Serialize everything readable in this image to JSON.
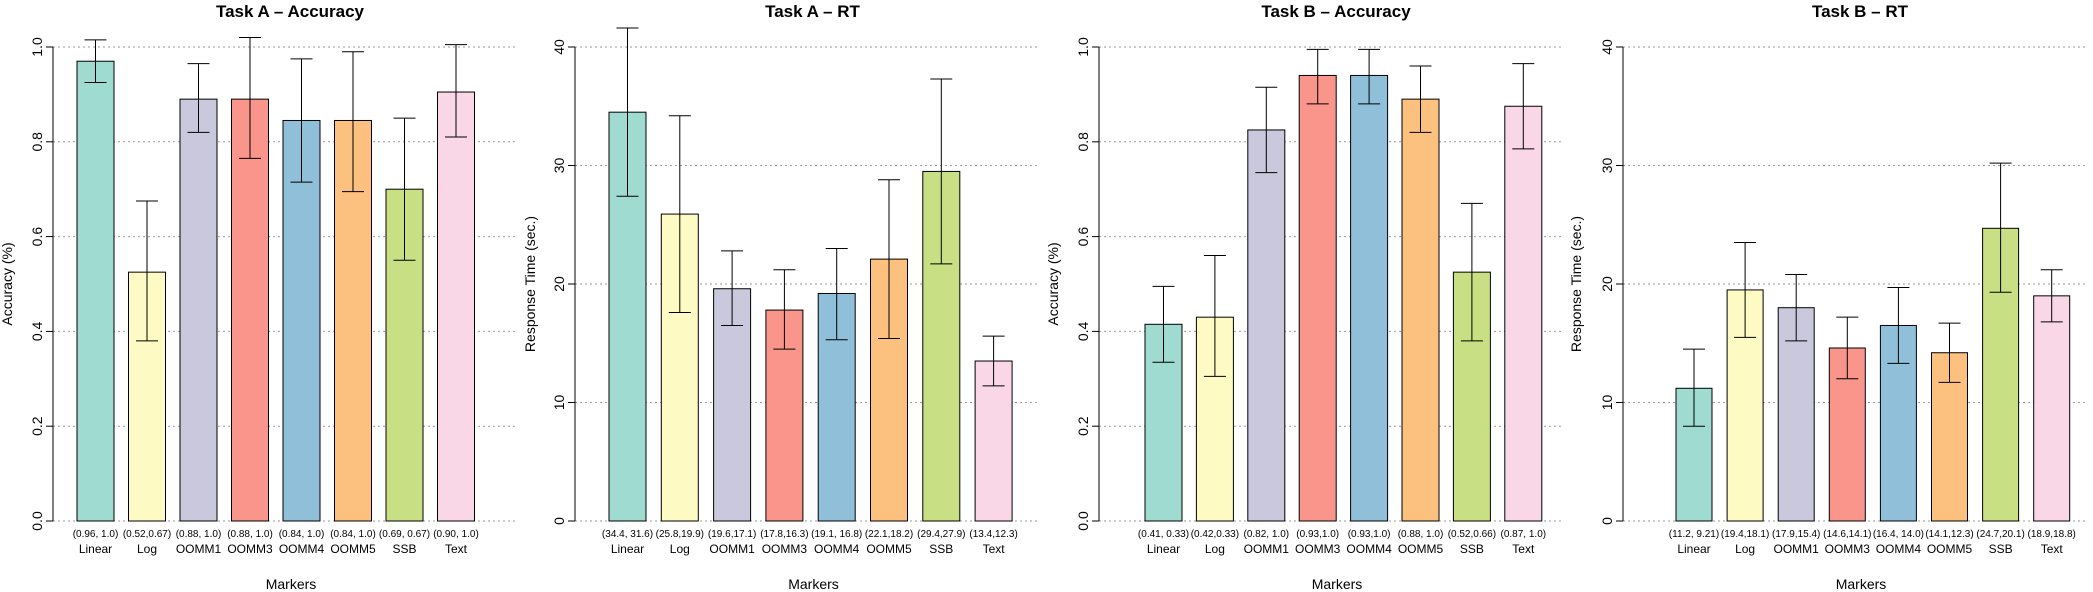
{
  "colors": [
    "#9fdbd1",
    "#fdfbc3",
    "#c9c8dd",
    "#f9958b",
    "#90bfd9",
    "#fdc17f",
    "#c9df83",
    "#f9d7e7"
  ],
  "chart_data": [
    {
      "type": "bar",
      "title": "Task A – Accuracy",
      "xlabel": "Markers",
      "ylabel": "Accuracy (%)",
      "ylim": [
        0,
        1.0
      ],
      "yticks": [
        0.0,
        0.2,
        0.4,
        0.6,
        0.8,
        1.0
      ],
      "ytick_labels": [
        "0.0",
        "0.2",
        "0.4",
        "0.6",
        "0.8",
        "1.0"
      ],
      "grid": "horizontal dotted",
      "categories": [
        "Linear",
        "Log",
        "OOMM1",
        "OOMM3",
        "OOMM4",
        "OOMM5",
        "SSB",
        "Text"
      ],
      "ci_labels": [
        "(0.96, 1.0)",
        "(0.52,0.67)",
        "(0.88, 1.0)",
        "(0.88, 1.0)",
        "(0.84, 1.0)",
        "(0.84, 1.0)",
        "(0.69, 0.67)",
        "(0.90, 1.0)"
      ],
      "values": [
        0.97,
        0.525,
        0.89,
        0.89,
        0.845,
        0.845,
        0.7,
        0.905
      ],
      "err_low": [
        0.925,
        0.38,
        0.82,
        0.765,
        0.715,
        0.695,
        0.55,
        0.81
      ],
      "err_high": [
        1.015,
        0.675,
        0.965,
        1.02,
        0.975,
        0.99,
        0.85,
        1.005
      ]
    },
    {
      "type": "bar",
      "title": "Task A – RT",
      "xlabel": "Markers",
      "ylabel": "Response Time (sec.)",
      "ylim": [
        0,
        40
      ],
      "yticks": [
        0,
        10,
        20,
        30,
        40
      ],
      "ytick_labels": [
        "0",
        "10",
        "20",
        "30",
        "40"
      ],
      "grid": "horizontal dotted",
      "categories": [
        "Linear",
        "Log",
        "OOMM1",
        "OOMM3",
        "OOMM4",
        "OOMM5",
        "SSB",
        "Text"
      ],
      "ci_labels": [
        "(34.4, 31.6)",
        "(25.8,19.9)",
        "(19.6,17.1)",
        "(17.8,16.3)",
        "(19.1, 16.8)",
        "(22.1,18.2)",
        "(29.4,27.9)",
        "(13.4,12.3)"
      ],
      "values": [
        34.5,
        25.9,
        19.6,
        17.8,
        19.2,
        22.1,
        29.5,
        13.5
      ],
      "err_low": [
        27.4,
        17.6,
        16.5,
        14.5,
        15.3,
        15.4,
        21.7,
        11.4
      ],
      "err_high": [
        41.6,
        34.2,
        22.8,
        21.2,
        23.0,
        28.8,
        37.3,
        15.6
      ]
    },
    {
      "type": "bar",
      "title": "Task B – Accuracy",
      "xlabel": "Markers",
      "ylabel": "Accuracy (%)",
      "ylim": [
        0,
        1.0
      ],
      "yticks": [
        0.0,
        0.2,
        0.4,
        0.6,
        0.8,
        1.0
      ],
      "ytick_labels": [
        "0.0",
        "0.2",
        "0.4",
        "0.6",
        "0.8",
        "1.0"
      ],
      "grid": "horizontal dotted",
      "categories": [
        "Linear",
        "Log",
        "OOMM1",
        "OOMM3",
        "OOMM4",
        "OOMM5",
        "SSB",
        "Text"
      ],
      "ci_labels": [
        "(0.41, 0.33)",
        "(0.42,0.33)",
        "(0.82, 1.0)",
        "(0.93,1.0)",
        "(0.93,1.0)",
        "(0.88, 1.0)",
        "(0.52,0.66)",
        "(0.87, 1.0)"
      ],
      "values": [
        0.415,
        0.43,
        0.825,
        0.94,
        0.94,
        0.89,
        0.525,
        0.875
      ],
      "err_low": [
        0.335,
        0.305,
        0.735,
        0.88,
        0.88,
        0.82,
        0.38,
        0.785
      ],
      "err_high": [
        0.495,
        0.56,
        0.915,
        0.995,
        0.995,
        0.96,
        0.67,
        0.965
      ]
    },
    {
      "type": "bar",
      "title": "Task B – RT",
      "xlabel": "Markers",
      "ylabel": "Response Time (sec.)",
      "ylim": [
        0,
        40
      ],
      "yticks": [
        0,
        10,
        20,
        30,
        40
      ],
      "ytick_labels": [
        "0",
        "10",
        "20",
        "30",
        "40"
      ],
      "grid": "horizontal dotted",
      "categories": [
        "Linear",
        "Log",
        "OOMM1",
        "OOMM3",
        "OOMM4",
        "OOMM5",
        "SSB",
        "Text"
      ],
      "ci_labels": [
        "(11.2, 9.21)",
        "(19.4,18.1)",
        "(17.9,15.4)",
        "(14.6,14.1)",
        "(16.4, 14.0)",
        "(14.1,12.3)",
        "(24.7,20.1)",
        "(18.9,18.8)"
      ],
      "values": [
        11.2,
        19.5,
        18.0,
        14.6,
        16.5,
        14.2,
        24.7,
        19.0
      ],
      "err_low": [
        8.0,
        15.5,
        15.2,
        12.0,
        13.3,
        11.7,
        19.3,
        16.8
      ],
      "err_high": [
        14.5,
        23.5,
        20.8,
        17.2,
        19.7,
        16.7,
        30.2,
        21.2
      ]
    }
  ]
}
